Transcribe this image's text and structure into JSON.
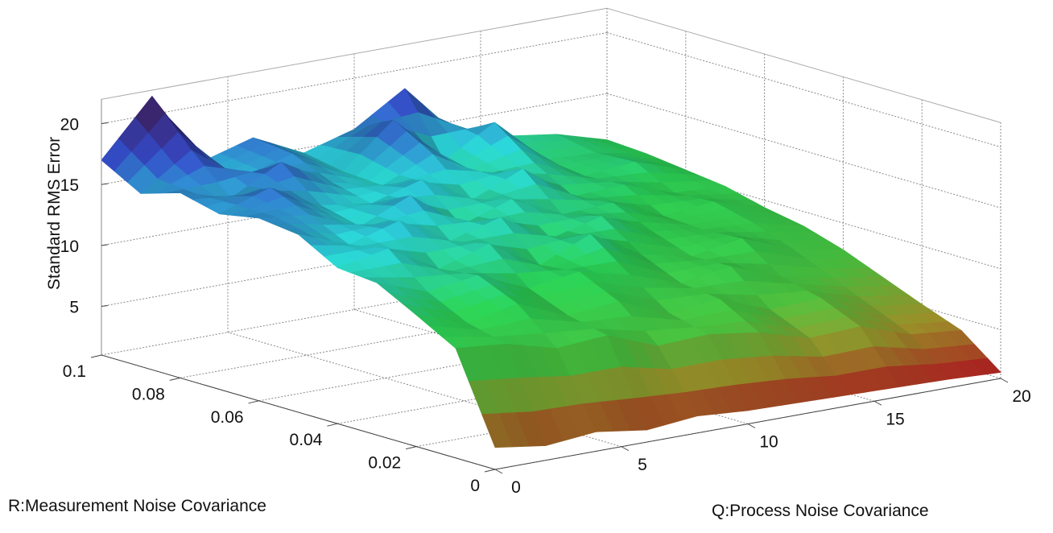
{
  "chart_data": {
    "type": "surface",
    "title": "",
    "xlabel": "Q:Process Noise Covariance",
    "ylabel": "R:Measurement Noise Covariance",
    "zlabel": "Standard RMS Error",
    "xlim": [
      0,
      20
    ],
    "ylim": [
      0,
      0.1
    ],
    "zlim": [
      1,
      22
    ],
    "xticks": [
      "0",
      "5",
      "10",
      "15",
      "20"
    ],
    "yticks": [
      "0",
      "0.02",
      "0.04",
      "0.06",
      "0.08",
      "0.1"
    ],
    "zticks": [
      "5",
      "10",
      "15",
      "20"
    ],
    "grid": true,
    "colormap": "red-green-cyan-blue (low to high)",
    "x": [
      0,
      2,
      4,
      6,
      8,
      10,
      12,
      14,
      16,
      18,
      20
    ],
    "y": [
      0,
      0.01,
      0.02,
      0.03,
      0.04,
      0.05,
      0.06,
      0.07,
      0.08,
      0.09,
      0.1
    ],
    "z": [
      [
        2.8,
        2.2,
        2.6,
        2.0,
        2.4,
        2.1,
        2.0,
        1.9,
        1.8,
        1.7,
        1.5
      ],
      [
        10.0,
        9.6,
        8.5,
        8.8,
        7.2,
        7.4,
        6.8,
        5.6,
        5.8,
        4.4,
        4.0
      ],
      [
        11.8,
        10.4,
        11.2,
        9.5,
        9.9,
        8.2,
        8.6,
        7.0,
        7.2,
        5.8,
        5.2
      ],
      [
        13.5,
        12.0,
        12.6,
        10.8,
        11.4,
        10.4,
        9.0,
        9.6,
        8.0,
        7.2,
        6.5
      ],
      [
        13.8,
        14.6,
        12.2,
        13.5,
        11.0,
        12.8,
        10.4,
        9.5,
        10.2,
        8.6,
        7.8
      ],
      [
        15.6,
        14.0,
        15.2,
        12.8,
        14.0,
        11.5,
        12.6,
        10.6,
        10.0,
        9.8,
        8.8
      ],
      [
        16.0,
        15.5,
        13.8,
        15.6,
        12.4,
        13.8,
        11.8,
        12.0,
        10.2,
        10.6,
        9.4
      ],
      [
        15.4,
        16.8,
        14.6,
        14.0,
        15.2,
        12.8,
        14.6,
        11.6,
        11.8,
        10.4,
        10.2
      ],
      [
        16.2,
        15.0,
        17.2,
        14.8,
        13.8,
        15.6,
        13.2,
        13.4,
        11.6,
        12.0,
        10.6
      ],
      [
        15.2,
        18.0,
        15.0,
        16.2,
        14.0,
        17.5,
        13.4,
        15.8,
        12.0,
        11.8,
        11.0
      ],
      [
        17.0,
        21.5,
        15.4,
        16.6,
        14.6,
        15.8,
        18.4,
        14.0,
        13.0,
        12.4,
        11.2
      ]
    ]
  }
}
